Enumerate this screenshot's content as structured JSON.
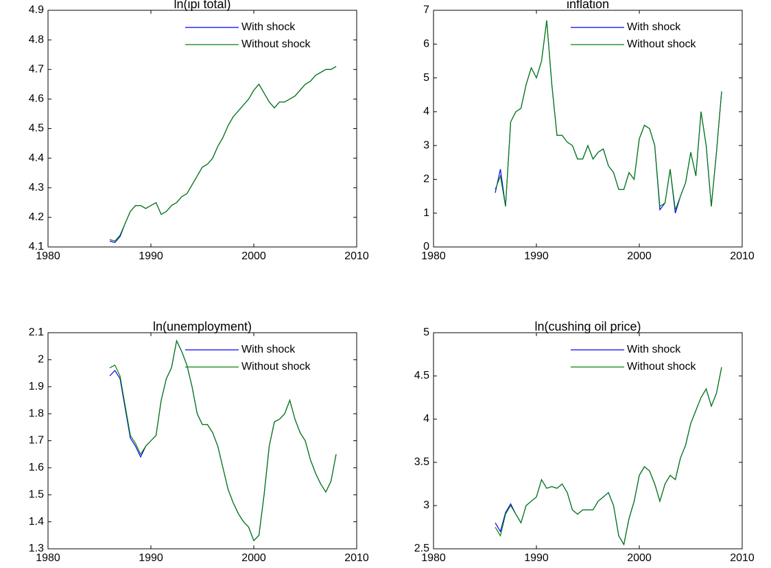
{
  "chart_data": [
    {
      "type": "line",
      "title": "ln(ipi total)",
      "legend": "upper-right",
      "x": [
        1986,
        1986.5,
        1987,
        1987.5,
        1988,
        1988.5,
        1989,
        1989.5,
        1990,
        1990.5,
        1991,
        1991.5,
        1992,
        1992.5,
        1993,
        1993.5,
        1994,
        1994.5,
        1995,
        1995.5,
        1996,
        1996.5,
        1997,
        1997.5,
        1998,
        1998.5,
        1999,
        1999.5,
        2000,
        2000.5,
        2001,
        2001.5,
        2002,
        2002.5,
        2003,
        2003.5,
        2004,
        2004.5,
        2005,
        2005.5,
        2006,
        2006.5,
        2007,
        2007.5,
        2008
      ],
      "xlim": [
        1980,
        2010
      ],
      "xticks": [
        1980,
        1990,
        2000,
        2010
      ],
      "ylim": [
        4.1,
        4.9
      ],
      "yticks": [
        4.1,
        4.2,
        4.3,
        4.4,
        4.5,
        4.6,
        4.7,
        4.8,
        4.9
      ],
      "series": [
        {
          "name": "With shock",
          "color": "#0000ff",
          "values": [
            4.12,
            4.115,
            4.135,
            4.18,
            4.22,
            4.24,
            4.24,
            4.23,
            4.24,
            4.25,
            4.21,
            4.22,
            4.24,
            4.25,
            4.27,
            4.28,
            4.31,
            4.34,
            4.37,
            4.38,
            4.4,
            4.44,
            4.47,
            4.51,
            4.54,
            4.56,
            4.58,
            4.6,
            4.63,
            4.65,
            4.62,
            4.59,
            4.57,
            4.59,
            4.59,
            4.6,
            4.61,
            4.63,
            4.65,
            4.66,
            4.68,
            4.69,
            4.7,
            4.7,
            4.71
          ]
        },
        {
          "name": "Without shock",
          "color": "#008000",
          "values": [
            4.125,
            4.12,
            4.14,
            4.18,
            4.22,
            4.24,
            4.24,
            4.23,
            4.24,
            4.25,
            4.21,
            4.22,
            4.24,
            4.25,
            4.27,
            4.28,
            4.31,
            4.34,
            4.37,
            4.38,
            4.4,
            4.44,
            4.47,
            4.51,
            4.54,
            4.56,
            4.58,
            4.6,
            4.63,
            4.65,
            4.62,
            4.59,
            4.57,
            4.59,
            4.59,
            4.6,
            4.61,
            4.63,
            4.65,
            4.66,
            4.68,
            4.69,
            4.7,
            4.7,
            4.71
          ]
        }
      ]
    },
    {
      "type": "line",
      "title": "inflation",
      "legend": "upper-right",
      "x": [
        1986,
        1986.5,
        1987,
        1987.5,
        1988,
        1988.5,
        1989,
        1989.5,
        1990,
        1990.5,
        1991,
        1991.5,
        1992,
        1992.5,
        1993,
        1993.5,
        1994,
        1994.5,
        1995,
        1995.5,
        1996,
        1996.5,
        1997,
        1997.5,
        1998,
        1998.5,
        1999,
        1999.5,
        2000,
        2000.5,
        2001,
        2001.5,
        2002,
        2002.5,
        2003,
        2003.5,
        2004,
        2004.5,
        2005,
        2005.5,
        2006,
        2006.5,
        2007,
        2007.5,
        2008
      ],
      "xlim": [
        1980,
        2010
      ],
      "xticks": [
        1980,
        1990,
        2000,
        2010
      ],
      "ylim": [
        0,
        7
      ],
      "yticks": [
        0,
        1,
        2,
        3,
        4,
        5,
        6,
        7
      ],
      "series": [
        {
          "name": "With shock",
          "color": "#0000ff",
          "values": [
            1.6,
            2.3,
            1.2,
            3.7,
            4.0,
            4.1,
            4.8,
            5.3,
            5.0,
            5.5,
            6.7,
            4.8,
            3.3,
            3.3,
            3.1,
            3.0,
            2.6,
            2.6,
            3.0,
            2.6,
            2.8,
            2.9,
            2.4,
            2.2,
            1.7,
            1.7,
            2.2,
            2.0,
            3.2,
            3.6,
            3.5,
            3.0,
            1.1,
            1.3,
            2.3,
            1.0,
            1.5,
            1.9,
            2.8,
            2.1,
            4.0,
            3.0,
            1.2,
            2.8,
            4.6
          ]
        },
        {
          "name": "Without shock",
          "color": "#008000",
          "values": [
            1.7,
            2.1,
            1.2,
            3.7,
            4.0,
            4.1,
            4.8,
            5.3,
            5.0,
            5.5,
            6.7,
            4.8,
            3.3,
            3.3,
            3.1,
            3.0,
            2.6,
            2.6,
            3.0,
            2.6,
            2.8,
            2.9,
            2.4,
            2.2,
            1.7,
            1.7,
            2.2,
            2.0,
            3.2,
            3.6,
            3.5,
            3.0,
            1.2,
            1.3,
            2.3,
            1.1,
            1.5,
            1.9,
            2.8,
            2.1,
            4.0,
            3.0,
            1.2,
            2.8,
            4.6
          ]
        }
      ]
    },
    {
      "type": "line",
      "title": "ln(unemployment)",
      "legend": "upper-right",
      "x": [
        1986,
        1986.5,
        1987,
        1987.5,
        1988,
        1988.5,
        1989,
        1989.5,
        1990,
        1990.5,
        1991,
        1991.5,
        1992,
        1992.5,
        1993,
        1993.5,
        1994,
        1994.5,
        1995,
        1995.5,
        1996,
        1996.5,
        1997,
        1997.5,
        1998,
        1998.5,
        1999,
        1999.5,
        2000,
        2000.5,
        2001,
        2001.5,
        2002,
        2002.5,
        2003,
        2003.5,
        2004,
        2004.5,
        2005,
        2005.5,
        2006,
        2006.5,
        2007,
        2007.5,
        2008
      ],
      "xlim": [
        1980,
        2010
      ],
      "xticks": [
        1980,
        1990,
        2000,
        2010
      ],
      "ylim": [
        1.3,
        2.1
      ],
      "yticks": [
        1.3,
        1.4,
        1.5,
        1.6,
        1.7,
        1.8,
        1.9,
        2,
        2.1
      ],
      "series": [
        {
          "name": "With shock",
          "color": "#0000ff",
          "values": [
            1.94,
            1.96,
            1.93,
            1.82,
            1.71,
            1.68,
            1.64,
            1.68,
            1.7,
            1.72,
            1.85,
            1.93,
            1.97,
            2.07,
            2.03,
            1.98,
            1.9,
            1.8,
            1.76,
            1.76,
            1.73,
            1.68,
            1.6,
            1.52,
            1.47,
            1.43,
            1.4,
            1.38,
            1.33,
            1.35,
            1.5,
            1.68,
            1.77,
            1.78,
            1.8,
            1.85,
            1.78,
            1.73,
            1.7,
            1.63,
            1.58,
            1.54,
            1.51,
            1.55,
            1.65
          ]
        },
        {
          "name": "Without shock",
          "color": "#008000",
          "values": [
            1.97,
            1.98,
            1.94,
            1.83,
            1.72,
            1.69,
            1.65,
            1.68,
            1.7,
            1.72,
            1.85,
            1.93,
            1.97,
            2.07,
            2.03,
            1.98,
            1.9,
            1.8,
            1.76,
            1.76,
            1.73,
            1.68,
            1.6,
            1.52,
            1.47,
            1.43,
            1.4,
            1.38,
            1.33,
            1.35,
            1.5,
            1.68,
            1.77,
            1.78,
            1.8,
            1.85,
            1.78,
            1.73,
            1.7,
            1.63,
            1.58,
            1.54,
            1.51,
            1.55,
            1.65
          ]
        }
      ]
    },
    {
      "type": "line",
      "title": "ln(cushing oil price)",
      "legend": "upper-right",
      "x": [
        1986,
        1986.5,
        1987,
        1987.5,
        1988,
        1988.5,
        1989,
        1989.5,
        1990,
        1990.5,
        1991,
        1991.5,
        1992,
        1992.5,
        1993,
        1993.5,
        1994,
        1994.5,
        1995,
        1995.5,
        1996,
        1996.5,
        1997,
        1997.5,
        1998,
        1998.5,
        1999,
        1999.5,
        2000,
        2000.5,
        2001,
        2001.5,
        2002,
        2002.5,
        2003,
        2003.5,
        2004,
        2004.5,
        2005,
        2005.5,
        2006,
        2006.5,
        2007,
        2007.5,
        2008
      ],
      "xlim": [
        1980,
        2010
      ],
      "xticks": [
        1980,
        1990,
        2000,
        2010
      ],
      "ylim": [
        2.5,
        5
      ],
      "yticks": [
        2.5,
        3,
        3.5,
        4,
        4.5,
        5
      ],
      "series": [
        {
          "name": "With shock",
          "color": "#0000ff",
          "values": [
            2.8,
            2.7,
            2.92,
            3.02,
            2.9,
            2.8,
            3.0,
            3.05,
            3.1,
            3.3,
            3.2,
            3.22,
            3.2,
            3.25,
            3.15,
            2.95,
            2.9,
            2.95,
            2.95,
            2.95,
            3.05,
            3.1,
            3.15,
            3.0,
            2.65,
            2.55,
            2.85,
            3.05,
            3.35,
            3.45,
            3.4,
            3.25,
            3.05,
            3.25,
            3.35,
            3.3,
            3.55,
            3.7,
            3.95,
            4.1,
            4.25,
            4.35,
            4.15,
            4.3,
            4.6
          ]
        },
        {
          "name": "Without shock",
          "color": "#008000",
          "values": [
            2.75,
            2.65,
            2.9,
            3.0,
            2.9,
            2.8,
            3.0,
            3.05,
            3.1,
            3.3,
            3.2,
            3.22,
            3.2,
            3.25,
            3.15,
            2.95,
            2.9,
            2.95,
            2.95,
            2.95,
            3.05,
            3.1,
            3.15,
            3.0,
            2.65,
            2.55,
            2.85,
            3.05,
            3.35,
            3.45,
            3.4,
            3.25,
            3.05,
            3.25,
            3.35,
            3.3,
            3.55,
            3.7,
            3.95,
            4.1,
            4.25,
            4.35,
            4.15,
            4.3,
            4.6
          ]
        }
      ]
    }
  ]
}
